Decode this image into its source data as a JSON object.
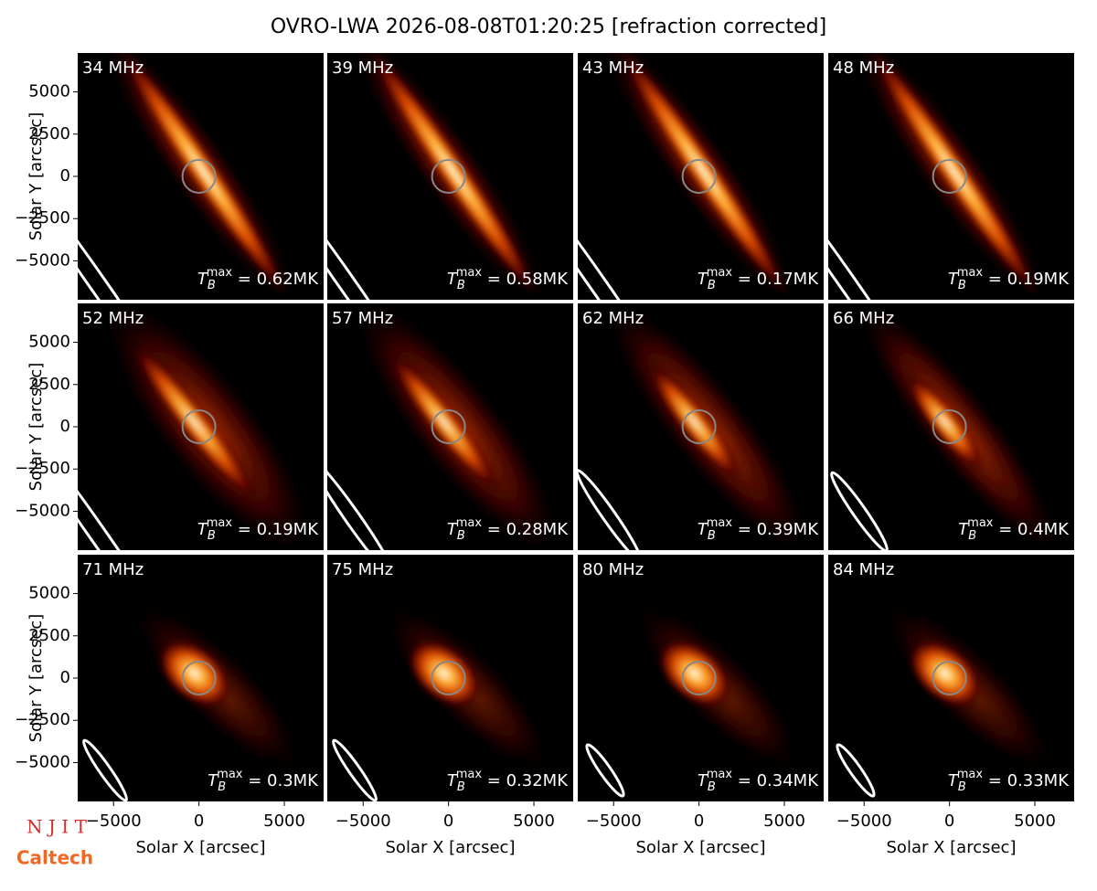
{
  "title": "OVRO-LWA 2026-08-08T01:20:25 [refraction corrected]",
  "xlabel": "Solar X [arcsec]",
  "ylabel": "Solar Y [arcsec]",
  "xlim": [
    -7100,
    7300
  ],
  "ylim": [
    -7300,
    7300
  ],
  "xticks": [
    {
      "value": -5000,
      "label": "−5000"
    },
    0,
    5000
  ],
  "yticks": [
    {
      "value": -5000,
      "label": "−5000"
    },
    {
      "value": -2500,
      "label": "−2500"
    },
    0,
    2500,
    5000
  ],
  "annotation_symbol": {
    "base": "T",
    "sub": "B",
    "sup": "max"
  },
  "logos": [
    "N J I T",
    "Caltech"
  ],
  "chart_data": [
    {
      "type": "image",
      "label": "34 MHz",
      "annotation": " = 0.62MK"
    },
    {
      "type": "image",
      "label": "39 MHz",
      "annotation": " = 0.58MK"
    },
    {
      "type": "image",
      "label": "43 MHz",
      "annotation": " = 0.17MK"
    },
    {
      "type": "image",
      "label": "48 MHz",
      "annotation": " = 0.19MK"
    },
    {
      "type": "image",
      "label": "52 MHz",
      "annotation": " = 0.19MK"
    },
    {
      "type": "image",
      "label": "57 MHz",
      "annotation": " = 0.28MK"
    },
    {
      "type": "image",
      "label": "62 MHz",
      "annotation": " = 0.39MK"
    },
    {
      "type": "image",
      "label": "66 MHz",
      "annotation": " = 0.4MK"
    },
    {
      "type": "image",
      "label": "71 MHz",
      "annotation": " = 0.3MK"
    },
    {
      "type": "image",
      "label": "75 MHz",
      "annotation": " = 0.32MK"
    },
    {
      "type": "image",
      "label": "80 MHz",
      "annotation": " = 0.34MK"
    },
    {
      "type": "image",
      "label": "84 MHz",
      "annotation": " = 0.33MK"
    }
  ]
}
